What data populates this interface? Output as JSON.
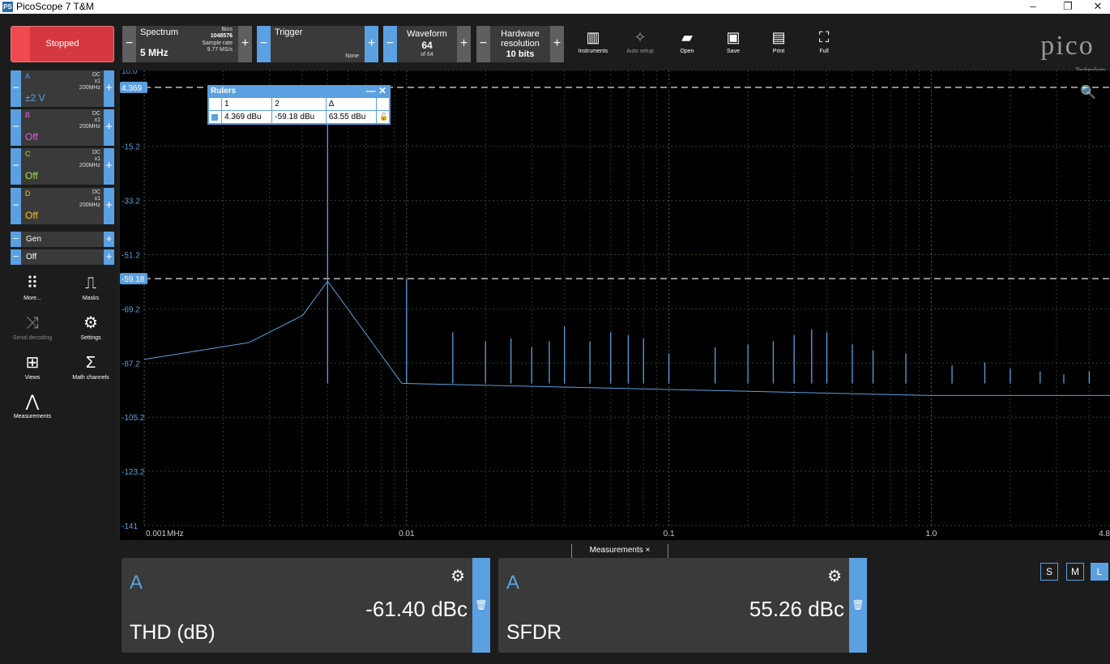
{
  "window": {
    "title": "PicoScope 7 T&M",
    "app_icon": "PS"
  },
  "toolbar": {
    "run_label": "Stopped",
    "spectrum": {
      "label": "Spectrum",
      "value": "5 MHz",
      "bins_label": "Bins",
      "bins_value": "1048576",
      "rate_label": "Sample rate",
      "rate_value": "9.77 MS/s"
    },
    "trigger": {
      "label": "Trigger",
      "mode": "None"
    },
    "waveform": {
      "label": "Waveform",
      "value": "64",
      "of": "of 64"
    },
    "hardware": {
      "label_line1": "Hardware",
      "label_line2": "resolution",
      "value": "10 bits"
    },
    "tools": [
      {
        "label": "Instruments",
        "icon": "instruments-icon",
        "glyph": "▥"
      },
      {
        "label": "Auto setup",
        "icon": "auto-setup-icon",
        "glyph": "✧"
      },
      {
        "label": "Open",
        "icon": "folder-icon",
        "glyph": "▰"
      },
      {
        "label": "Save",
        "icon": "save-icon",
        "glyph": "▣"
      },
      {
        "label": "Print",
        "icon": "print-icon",
        "glyph": "▤"
      },
      {
        "label": "Full",
        "icon": "fullscreen-icon",
        "glyph": "⛶"
      }
    ],
    "logo": "pico",
    "logo_sub": "Technology"
  },
  "channels": [
    {
      "name": "A",
      "coupling": "DC",
      "probe": "x1",
      "bw": "200MHz",
      "range": "±2 V",
      "color": "#5ba0e0"
    },
    {
      "name": "B",
      "coupling": "DC",
      "probe": "x1",
      "bw": "200MHz",
      "range": "Off",
      "color": "#e060e0"
    },
    {
      "name": "C",
      "coupling": "DC",
      "probe": "x1",
      "bw": "200MHz",
      "range": "Off",
      "color": "#a0e040"
    },
    {
      "name": "D",
      "coupling": "DC",
      "probe": "x1",
      "bw": "200MHz",
      "range": "Off",
      "color": "#f0c020"
    }
  ],
  "generator": {
    "label": "Gen",
    "state": "Off"
  },
  "side_tools": [
    {
      "label": "More...",
      "icon": "more-icon",
      "glyph": "⠿"
    },
    {
      "label": "Masks",
      "icon": "masks-icon",
      "glyph": "⎍"
    },
    {
      "label": "Serial decoding",
      "icon": "serial-decoding-icon",
      "glyph": "⤨"
    },
    {
      "label": "Settings",
      "icon": "gear-icon",
      "glyph": "⚙"
    },
    {
      "label": "Views",
      "icon": "views-icon",
      "glyph": "⊞"
    },
    {
      "label": "Math channels",
      "icon": "sigma-icon",
      "glyph": "Σ"
    },
    {
      "label": "Measurements",
      "icon": "measurements-icon",
      "glyph": "⋀"
    }
  ],
  "rulers": {
    "title": "Rulers",
    "headers": [
      "1",
      "2",
      "Δ"
    ],
    "values": [
      "4.369 dBu",
      "-59.18 dBu",
      "63.55 dBu"
    ]
  },
  "chart_data": {
    "type": "line",
    "ylabel": "dBu",
    "xlabel": "MHz",
    "x_scale": "log",
    "ylim": [
      -141.2,
      10.0
    ],
    "xlim": [
      0.001,
      4.8
    ],
    "y_ticks": [
      "10.0",
      "-15.2",
      "-33.2",
      "-51.2",
      "-69.2",
      "-87.2",
      "-105.2",
      "-123.2",
      "-141"
    ],
    "y_tick_values": [
      10.0,
      -15.2,
      -33.2,
      -51.2,
      -69.2,
      -87.2,
      -105.2,
      -123.2,
      -141.2
    ],
    "x_ticks": [
      "0.001",
      "0.01",
      "0.1",
      "1.0",
      "4.8"
    ],
    "x_tick_values": [
      0.001,
      0.01,
      0.1,
      1.0,
      4.8
    ],
    "ruler_levels": [
      {
        "label": "4.369",
        "value": 4.369
      },
      {
        "label": "-59.18",
        "value": -59.18
      }
    ],
    "fundamental_mhz": 0.005,
    "fundamental_dbu": 4.369,
    "noise_floor_dbu": -94,
    "series": [
      {
        "values_description_color": "#5ba0e0",
        "peaks": [
          {
            "x": 0.005,
            "y": 4.369
          },
          {
            "x": 0.01,
            "y": -59.18
          },
          {
            "x": 0.015,
            "y": -77
          },
          {
            "x": 0.02,
            "y": -80
          },
          {
            "x": 0.025,
            "y": -79
          },
          {
            "x": 0.03,
            "y": -82
          },
          {
            "x": 0.035,
            "y": -80
          },
          {
            "x": 0.04,
            "y": -75
          },
          {
            "x": 0.05,
            "y": -80
          },
          {
            "x": 0.06,
            "y": -77
          },
          {
            "x": 0.07,
            "y": -78
          },
          {
            "x": 0.08,
            "y": -79
          },
          {
            "x": 0.1,
            "y": -84
          },
          {
            "x": 0.15,
            "y": -82
          },
          {
            "x": 0.2,
            "y": -81
          },
          {
            "x": 0.25,
            "y": -80
          },
          {
            "x": 0.3,
            "y": -78
          },
          {
            "x": 0.35,
            "y": -76
          },
          {
            "x": 0.4,
            "y": -77
          },
          {
            "x": 0.5,
            "y": -81
          },
          {
            "x": 0.6,
            "y": -83
          },
          {
            "x": 0.8,
            "y": -84
          },
          {
            "x": 1.2,
            "y": -88
          },
          {
            "x": 1.6,
            "y": -87
          },
          {
            "x": 2.0,
            "y": -89
          },
          {
            "x": 2.6,
            "y": -90
          },
          {
            "x": 3.2,
            "y": -91
          },
          {
            "x": 4.0,
            "y": -90
          }
        ]
      }
    ]
  },
  "measurements": {
    "tab_label": "Measurements ×",
    "cards": [
      {
        "channel": "A",
        "value": "-61.40 dBc",
        "name": "THD (dB)"
      },
      {
        "channel": "A",
        "value": "55.26 dBc",
        "name": "SFDR"
      }
    ],
    "sizes": [
      "S",
      "M",
      "L"
    ],
    "active_size": "L"
  }
}
